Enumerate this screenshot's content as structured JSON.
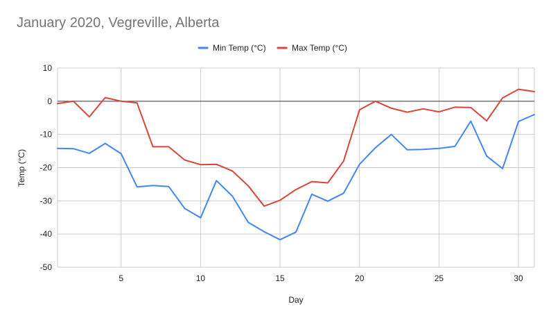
{
  "chart_data": {
    "type": "line",
    "title": "January 2020, Vegreville, Alberta",
    "xlabel": "Day",
    "ylabel": "Temp (°C)",
    "xlim": [
      1,
      31
    ],
    "ylim": [
      -50,
      10
    ],
    "x_ticks": [
      "5",
      "10",
      "15",
      "20",
      "25",
      "30"
    ],
    "y_ticks": [
      "10",
      "0",
      "-10",
      "-20",
      "-30",
      "-40",
      "-50"
    ],
    "grid": true,
    "legend_position": "top",
    "x": [
      1,
      2,
      3,
      4,
      5,
      6,
      7,
      8,
      9,
      10,
      11,
      12,
      13,
      14,
      15,
      16,
      17,
      18,
      19,
      20,
      21,
      22,
      23,
      24,
      25,
      26,
      27,
      28,
      29,
      30,
      31
    ],
    "series": [
      {
        "name": "Min Temp (°C)",
        "color": "#4285f4",
        "values": [
          -14.2,
          -14.3,
          -15.7,
          -12.7,
          -15.8,
          -25.8,
          -25.4,
          -25.7,
          -32.3,
          -35.1,
          -23.9,
          -28.6,
          -36.5,
          -39.3,
          -41.7,
          -39.4,
          -28.0,
          -30.1,
          -27.7,
          -19.0,
          -14.0,
          -10.0,
          -14.6,
          -14.5,
          -14.2,
          -13.6,
          -6.0,
          -16.5,
          -20.3,
          -6.1,
          -4.0
        ]
      },
      {
        "name": "Max Temp (°C)",
        "color": "#db4437",
        "values": [
          -0.7,
          0.0,
          -4.7,
          1.1,
          0.0,
          -0.5,
          -13.7,
          -13.7,
          -17.7,
          -19.1,
          -19.0,
          -21.0,
          -25.5,
          -31.6,
          -29.8,
          -26.6,
          -24.2,
          -24.6,
          -18.0,
          -2.6,
          0.0,
          -2.1,
          -3.3,
          -2.3,
          -3.2,
          -1.8,
          -1.9,
          -5.9,
          1.0,
          3.6,
          2.9
        ]
      }
    ]
  }
}
